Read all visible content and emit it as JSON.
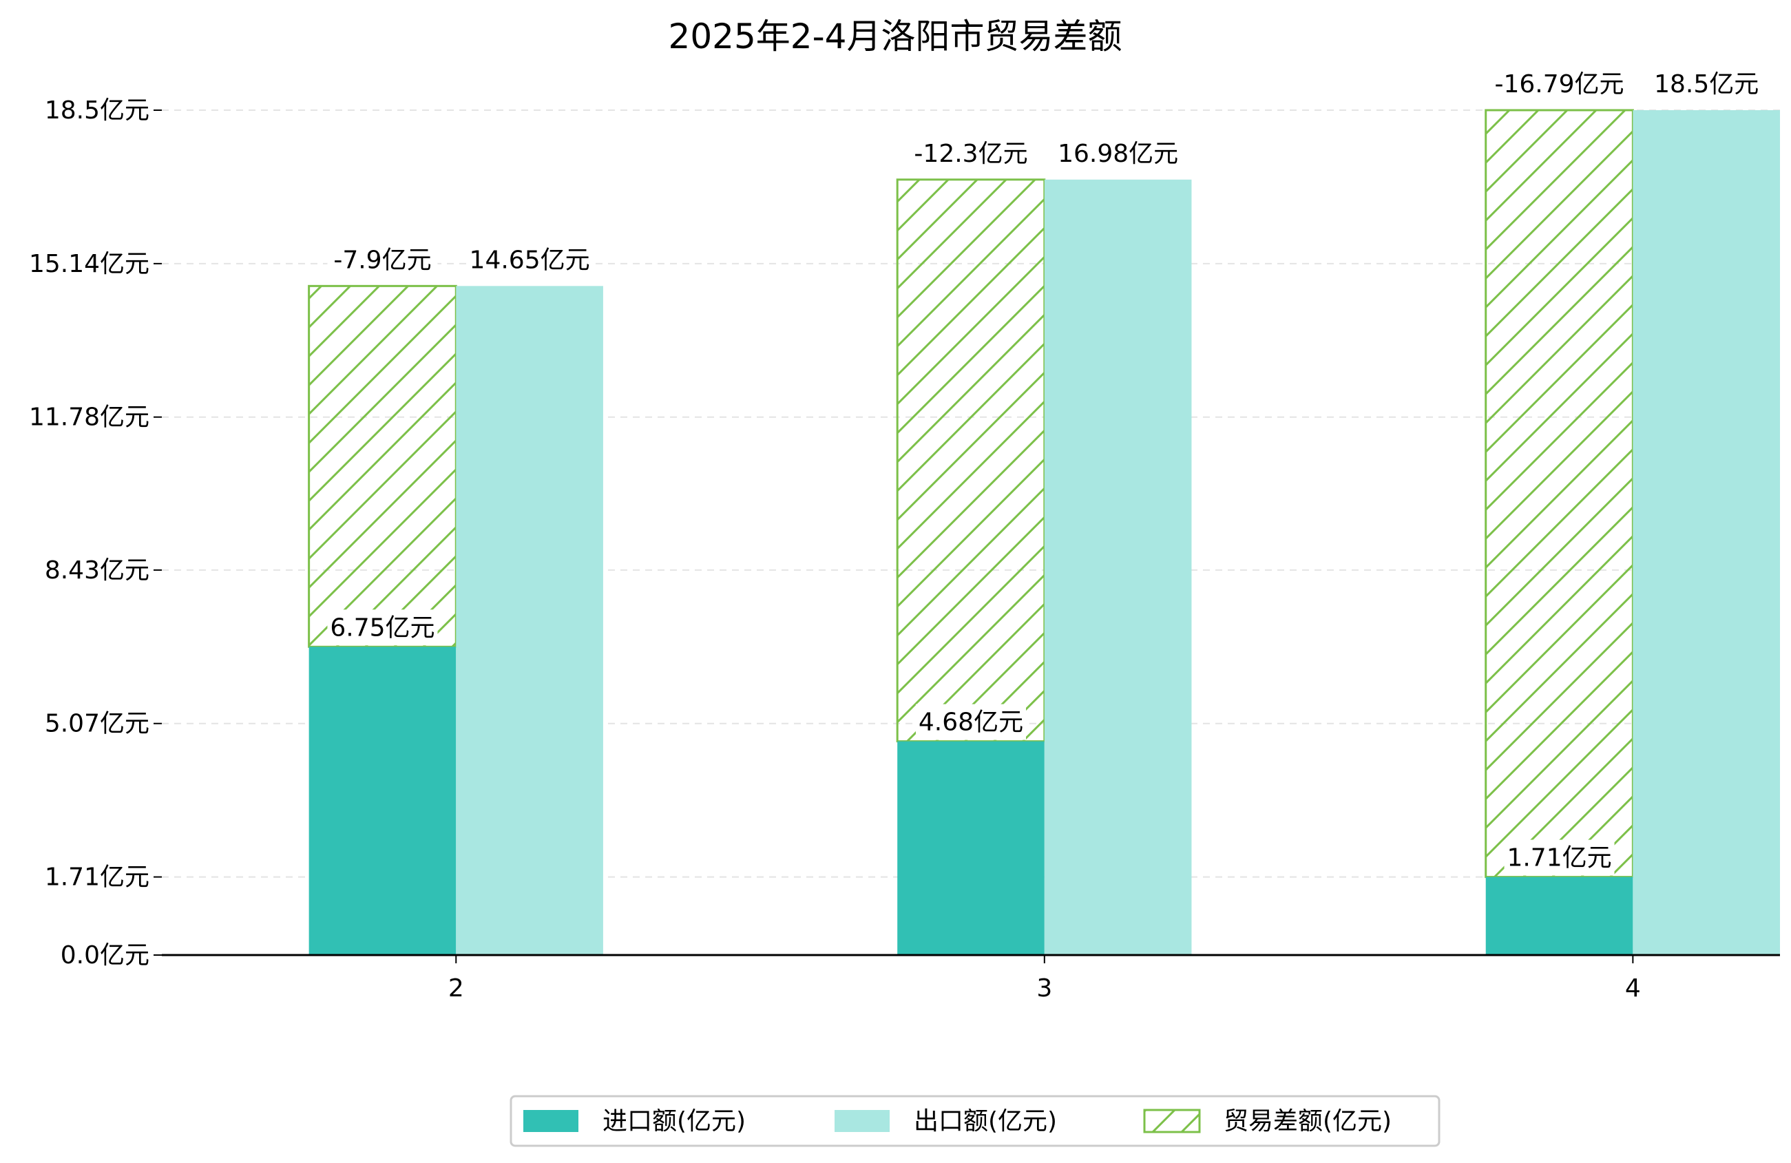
{
  "chart_data": {
    "type": "bar",
    "title": "2025年2-4月洛阳市贸易差额",
    "categories": [
      "2",
      "3",
      "4"
    ],
    "series": [
      {
        "name": "进口额(亿元)",
        "values": [
          6.75,
          4.68,
          1.71
        ],
        "labels": [
          "6.75亿元",
          "4.68亿元",
          "1.71亿元"
        ],
        "color": "#31c0b4"
      },
      {
        "name": "出口额(亿元)",
        "values": [
          14.65,
          16.98,
          18.5
        ],
        "labels": [
          "14.65亿元",
          "16.98亿元",
          "18.5亿元"
        ],
        "color": "#a9e7e1"
      },
      {
        "name": "贸易差额(亿元)",
        "values": [
          -7.9,
          -12.3,
          -16.79
        ],
        "labels": [
          "-7.9亿元",
          "-12.3亿元",
          "-16.79亿元"
        ],
        "color": "#7cc049"
      }
    ],
    "yticks": [
      0.0,
      1.71,
      5.07,
      8.43,
      11.78,
      15.14,
      18.5
    ],
    "ytick_labels": [
      "0.0亿元",
      "1.71亿元",
      "5.07亿元",
      "8.43亿元",
      "11.78亿元",
      "15.14亿元",
      "18.5亿元"
    ],
    "ylim": [
      0,
      18.5
    ],
    "grid": true,
    "legend_position": "bottom-center",
    "xlabel": "",
    "ylabel": ""
  }
}
